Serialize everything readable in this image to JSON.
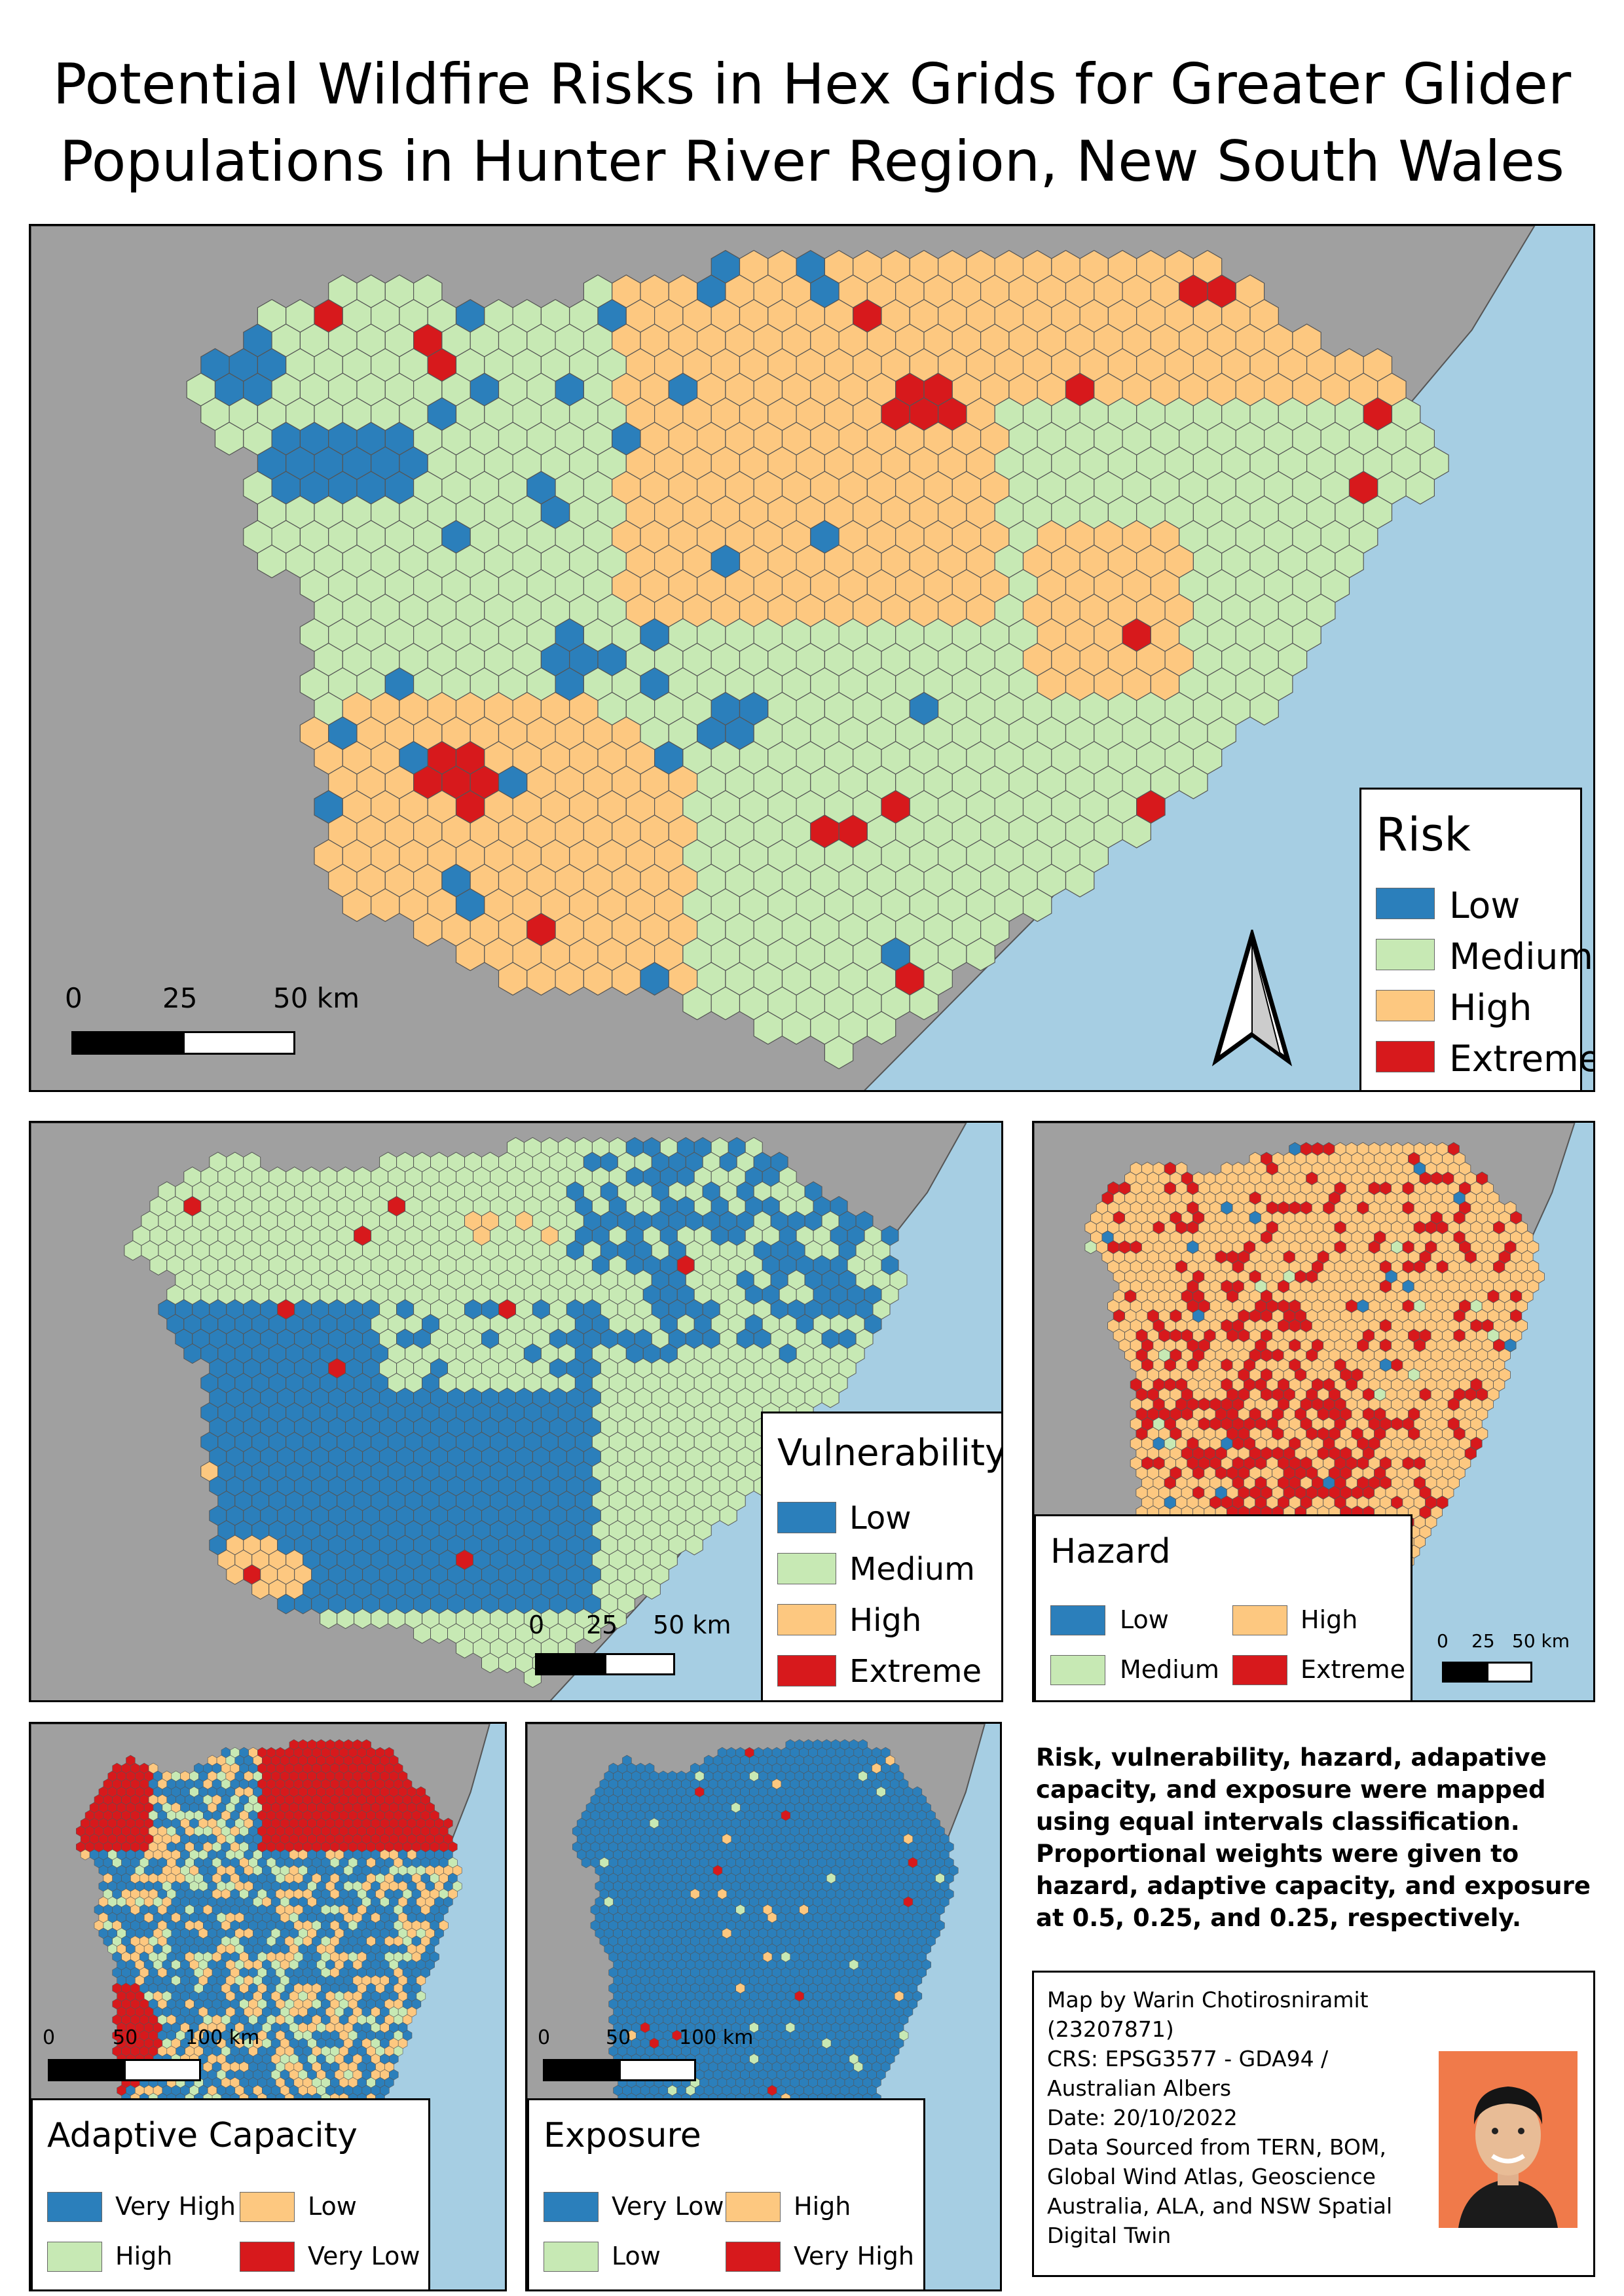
{
  "title_line1": "Potential Wildfire Risks in Hex Grids for Greater Glider",
  "title_line2": "Populations in Hunter River Region, New South Wales",
  "colors": {
    "land_outside": "#a0a0a0",
    "sea": "#a6cee3",
    "blue": "#2b7fbb",
    "light_green": "#c7e9b4",
    "orange": "#fdc880",
    "red": "#d7191c"
  },
  "risk_map": {
    "legend_title": "Risk",
    "legend": [
      "Low",
      "Medium",
      "High",
      "Extreme"
    ],
    "scale_labels": [
      "0",
      "25",
      "50 km"
    ]
  },
  "vulnerability_map": {
    "legend_title": "Vulnerability",
    "legend": [
      "Low",
      "Medium",
      "High",
      "Extreme"
    ],
    "scale_labels": [
      "0",
      "25",
      "50 km"
    ]
  },
  "hazard_map": {
    "legend_title": "Hazard",
    "legend": [
      "Low",
      "High",
      "Medium",
      "Extreme"
    ],
    "scale_labels": [
      "0",
      "25",
      "50 km"
    ]
  },
  "adaptive_map": {
    "legend_title": "Adaptive Capacity",
    "legend": [
      "Very High",
      "Low",
      "High",
      "Very Low"
    ],
    "scale_labels": [
      "0",
      "50",
      "100 km"
    ]
  },
  "exposure_map": {
    "legend_title": "Exposure",
    "legend": [
      "Very Low",
      "High",
      "Low",
      "Very High"
    ],
    "scale_labels": [
      "0",
      "50",
      "100 km"
    ]
  },
  "note_lines": [
    "Risk, vulnerability, hazard, adapative",
    "capacity, and exposure were mapped",
    "using equal intervals classification.",
    "Proportional weights were given to",
    "hazard, adaptive capacity, and exposure",
    "at 0.5, 0.25, and 0.25, respectively."
  ],
  "credits": [
    "Map by Warin Chotirosniramit",
    "(23207871)",
    "CRS: EPSG3577 - GDA94 /",
    "Australian Albers",
    "Date: 20/10/2022",
    "Data Sourced from TERN, BOM,",
    "Global Wind Atlas, Geoscience",
    "Australia, ALA, and NSW Spatial",
    "Digital Twin"
  ]
}
